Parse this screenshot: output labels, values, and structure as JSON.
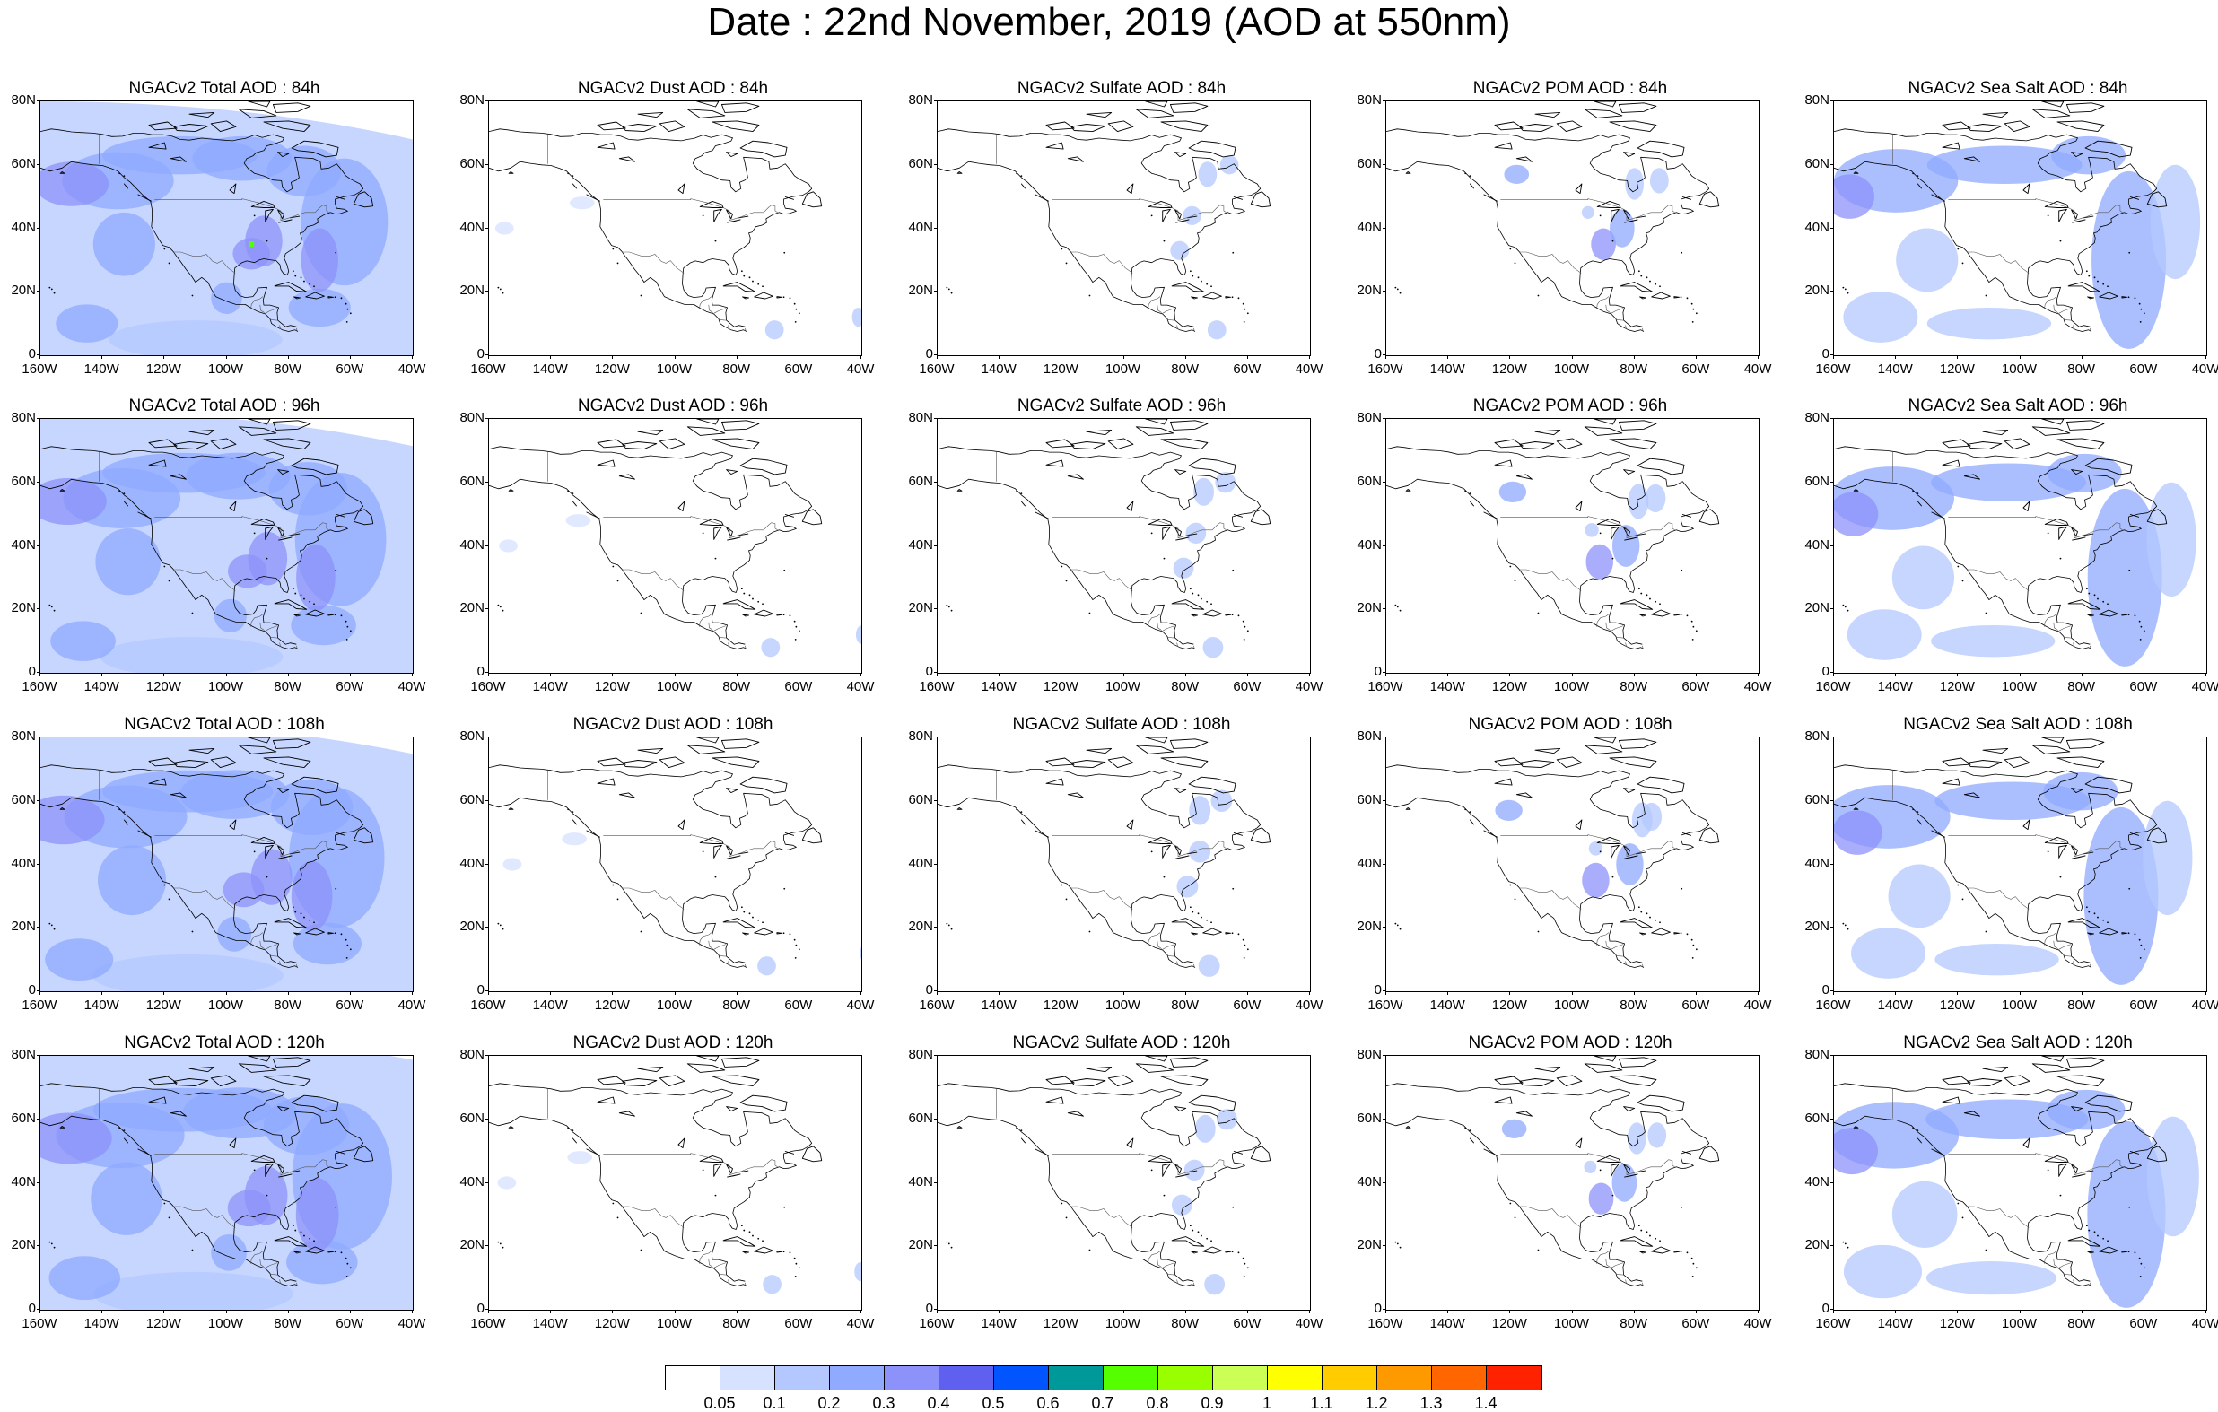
{
  "title": "Date : 22nd November, 2019 (AOD at 550nm)",
  "lat_labels": [
    "80N",
    "60N",
    "40N",
    "20N",
    "0"
  ],
  "lon_labels": [
    "160W",
    "140W",
    "120W",
    "100W",
    "80W",
    "60W",
    "40W"
  ],
  "rows": [
    {
      "panels": [
        {
          "title": "NGACv2 Total AOD : 84h",
          "species": "total",
          "forecast_hour": "84h",
          "intensity": 1.0
        },
        {
          "title": "NGACv2 Dust AOD : 84h",
          "species": "dust",
          "forecast_hour": "84h",
          "intensity": 1.0
        },
        {
          "title": "NGACv2 Sulfate AOD : 84h",
          "species": "sulfate",
          "forecast_hour": "84h",
          "intensity": 1.0
        },
        {
          "title": "NGACv2 POM AOD : 84h",
          "species": "pom",
          "forecast_hour": "84h",
          "intensity": 1.0
        },
        {
          "title": "NGACv2 Sea Salt AOD : 84h",
          "species": "seasalt",
          "forecast_hour": "84h",
          "intensity": 1.0
        }
      ]
    },
    {
      "panels": [
        {
          "title": "NGACv2 Total AOD : 96h",
          "species": "total",
          "forecast_hour": "96h",
          "intensity": 1.05
        },
        {
          "title": "NGACv2 Dust AOD : 96h",
          "species": "dust",
          "forecast_hour": "96h",
          "intensity": 1.0
        },
        {
          "title": "NGACv2 Sulfate AOD : 96h",
          "species": "sulfate",
          "forecast_hour": "96h",
          "intensity": 1.1
        },
        {
          "title": "NGACv2 POM AOD : 96h",
          "species": "pom",
          "forecast_hour": "96h",
          "intensity": 1.1
        },
        {
          "title": "NGACv2 Sea Salt AOD : 96h",
          "species": "seasalt",
          "forecast_hour": "96h",
          "intensity": 1.0
        }
      ]
    },
    {
      "panels": [
        {
          "title": "NGACv2 Total AOD : 108h",
          "species": "total",
          "forecast_hour": "108h",
          "intensity": 1.1
        },
        {
          "title": "NGACv2 Dust AOD : 108h",
          "species": "dust",
          "forecast_hour": "108h",
          "intensity": 1.0
        },
        {
          "title": "NGACv2 Sulfate AOD : 108h",
          "species": "sulfate",
          "forecast_hour": "108h",
          "intensity": 1.15
        },
        {
          "title": "NGACv2 POM AOD : 108h",
          "species": "pom",
          "forecast_hour": "108h",
          "intensity": 1.1
        },
        {
          "title": "NGACv2 Sea Salt  AOD : 108h",
          "species": "seasalt",
          "forecast_hour": "108h",
          "intensity": 1.0
        }
      ]
    },
    {
      "panels": [
        {
          "title": "NGACv2 Total AOD : 120h",
          "species": "total",
          "forecast_hour": "120h",
          "intensity": 1.15
        },
        {
          "title": "NGACv2 Dust AOD : 120h",
          "species": "dust",
          "forecast_hour": "120h",
          "intensity": 1.0
        },
        {
          "title": "NGACv2 Sulfate AOD : 120h",
          "species": "sulfate",
          "forecast_hour": "120h",
          "intensity": 1.1
        },
        {
          "title": "NGACv2 POM AOD : 120h",
          "species": "pom",
          "forecast_hour": "120h",
          "intensity": 1.0
        },
        {
          "title": "NGACv2 Sea Salt  AOD : 120h",
          "species": "seasalt",
          "forecast_hour": "120h",
          "intensity": 1.05
        }
      ]
    }
  ],
  "colorbar": {
    "colors": [
      "#ffffff",
      "#d6e2ff",
      "#b4c8ff",
      "#8faaff",
      "#8c92fa",
      "#5f5ff0",
      "#0055ff",
      "#009999",
      "#55ff00",
      "#99ff00",
      "#ccff55",
      "#ffff00",
      "#ffcc00",
      "#ff9900",
      "#ff6600",
      "#ff2200"
    ],
    "labels": [
      "0.05",
      "0.1",
      "0.2",
      "0.3",
      "0.4",
      "0.5",
      "0.6",
      "0.7",
      "0.8",
      "0.9",
      "1",
      "1.1",
      "1.2",
      "1.3",
      "1.4"
    ]
  }
}
